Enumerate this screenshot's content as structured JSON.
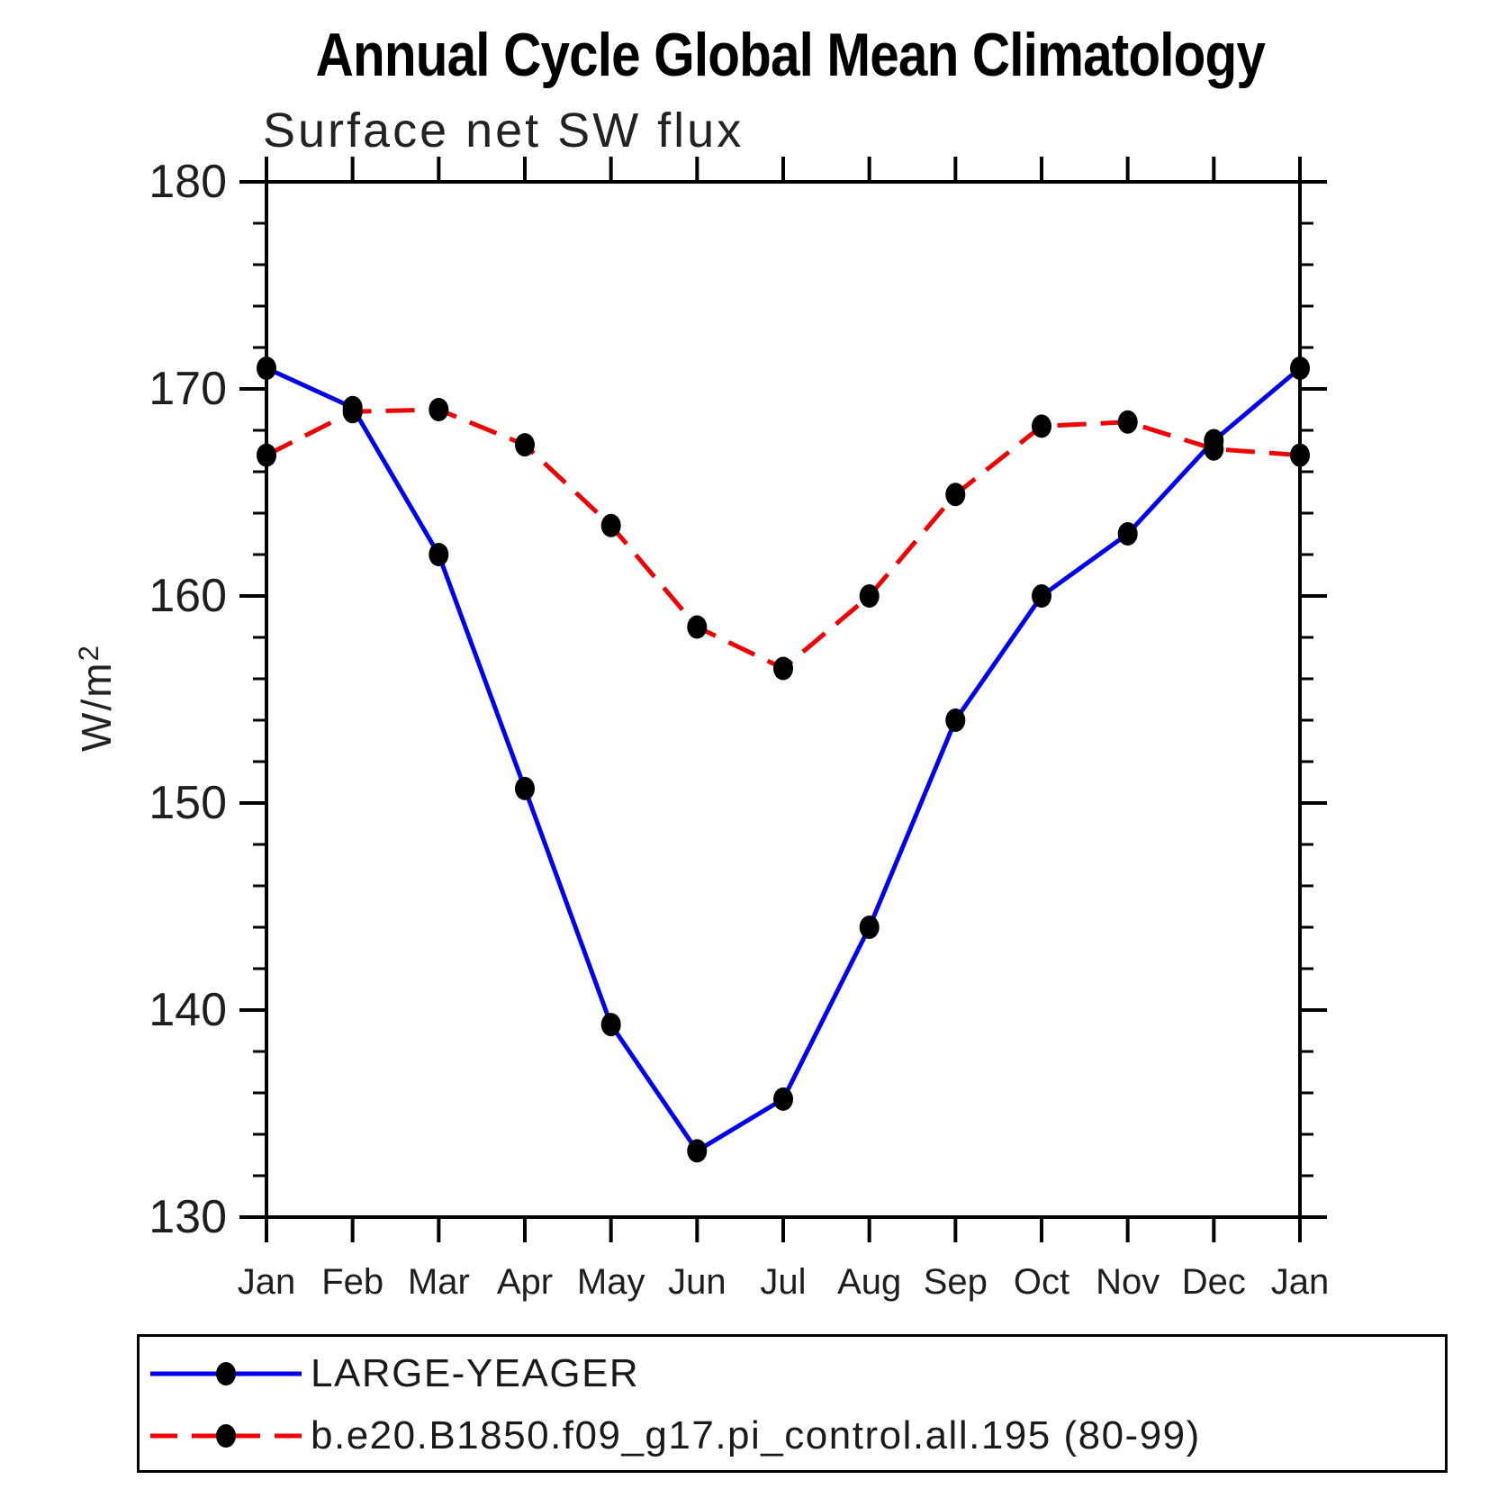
{
  "title": "Annual Cycle Global Mean Climatology",
  "subtitle": "Surface net SW flux",
  "ylabel": {
    "base": "W/m",
    "exp": "2"
  },
  "legend": {
    "items": [
      {
        "label": "LARGE-YEAGER",
        "color": "#0000ee",
        "style": "solid"
      },
      {
        "label": "b.e20.B1850.f09_g17.pi_control.all.195 (80-99)",
        "color": "#f00000",
        "style": "dashed"
      }
    ]
  },
  "chart_data": {
    "type": "line",
    "title": "Annual Cycle Global Mean Climatology",
    "subtitle": "Surface net SW flux",
    "xlabel": "",
    "ylabel": "W/m2",
    "x_categories": [
      "Jan",
      "Feb",
      "Mar",
      "Apr",
      "May",
      "Jun",
      "Jul",
      "Aug",
      "Sep",
      "Oct",
      "Nov",
      "Dec",
      "Jan"
    ],
    "series": [
      {
        "name": "LARGE-YEAGER",
        "color": "#0000ee",
        "dash": "solid",
        "values": [
          171.0,
          169.1,
          162.0,
          150.7,
          139.3,
          133.2,
          135.7,
          144.0,
          154.0,
          160.0,
          163.0,
          167.5,
          171.0
        ]
      },
      {
        "name": "b.e20.B1850.f09_g17.pi_control.all.195 (80-99)",
        "color": "#f00000",
        "dash": "dashed",
        "values": [
          166.8,
          168.9,
          169.0,
          167.3,
          163.4,
          158.5,
          156.5,
          160.0,
          164.9,
          168.2,
          168.4,
          167.1,
          166.8
        ]
      }
    ],
    "ylim": [
      130,
      180
    ],
    "y_major_ticks": [
      130,
      140,
      150,
      160,
      170,
      180
    ],
    "y_minor_step": 2,
    "marker": {
      "shape": "filled-circle",
      "color": "#000000"
    },
    "grid": false,
    "legend_position": "bottom"
  }
}
